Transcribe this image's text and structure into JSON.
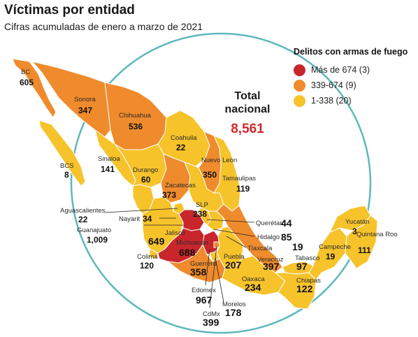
{
  "header": {
    "title": "Víctimas por entidad",
    "subtitle": "Cifras acumuladas de enero a marzo de 2021"
  },
  "legend": {
    "title": "Delitos con armas de fuego",
    "items": [
      {
        "label": "Más de 674 (3)",
        "color": "#c8262b"
      },
      {
        "label": "339-674 (9)",
        "color": "#ef8b2c"
      },
      {
        "label": "1-338 (20)",
        "color": "#f7c32b"
      }
    ]
  },
  "total": {
    "label_line1": "Total",
    "label_line2": "nacional",
    "value": "8,561"
  },
  "colors": {
    "circle": "#5fb8bd",
    "high": "#c8262b",
    "mid": "#ef8b2c",
    "low": "#f7c32b"
  },
  "states": {
    "bc": {
      "name": "BC",
      "value": "605"
    },
    "sonora": {
      "name": "Sonora",
      "value": "347"
    },
    "chihuahua": {
      "name": "Chihuahua",
      "value": "536"
    },
    "coahuila": {
      "name": "Coahuila",
      "value": "22"
    },
    "nuevo_leon": {
      "name": "Nuevo León",
      "value": "350"
    },
    "tamaulipas": {
      "name": "Tamaulipas",
      "value": "119"
    },
    "bcs": {
      "name": "BCS",
      "value": "8"
    },
    "sinaloa": {
      "name": "Sinaloa",
      "value": "141"
    },
    "durango": {
      "name": "Durango",
      "value": "60"
    },
    "zacatecas": {
      "name": "Zacatecas",
      "value": "373"
    },
    "slp": {
      "name": "SLP",
      "value": "238"
    },
    "aguascalientes": {
      "name": "Aguascalientes",
      "value": "22"
    },
    "nayarit": {
      "name": "Nayarit",
      "value": "34"
    },
    "guanajuato": {
      "name": "Guanajuato",
      "value": "1,009"
    },
    "jalisco": {
      "name": "Jalisco",
      "value": "649"
    },
    "michoacan": {
      "name": "Michoacán",
      "value": "688"
    },
    "colima": {
      "name": "Colima",
      "value": "120"
    },
    "guerrero": {
      "name": "Guerrero",
      "value": "358"
    },
    "queretaro": {
      "name": "Querétaro",
      "value": "44"
    },
    "hidalgo": {
      "name": "Hidalgo",
      "value": "85"
    },
    "tlaxcala": {
      "name": "Tlaxcala",
      "value": "19"
    },
    "puebla": {
      "name": "Puebla",
      "value": "207"
    },
    "veracruz": {
      "name": "Veracruz",
      "value": "397"
    },
    "oaxaca": {
      "name": "Oaxaca",
      "value": "234"
    },
    "edomex": {
      "name": "Edomex",
      "value": "967"
    },
    "morelos": {
      "name": "Morelos",
      "value": "178"
    },
    "cdmx": {
      "name": "CdMx",
      "value": "399"
    },
    "tabasco": {
      "name": "Tabasco",
      "value": "97"
    },
    "chiapas": {
      "name": "Chiapas",
      "value": "122"
    },
    "campeche": {
      "name": "Campeche",
      "value": "19"
    },
    "yucatan": {
      "name": "Yucatán",
      "value": "3"
    },
    "quintana_roo": {
      "name": "Quintana Roo",
      "value": "111"
    }
  }
}
